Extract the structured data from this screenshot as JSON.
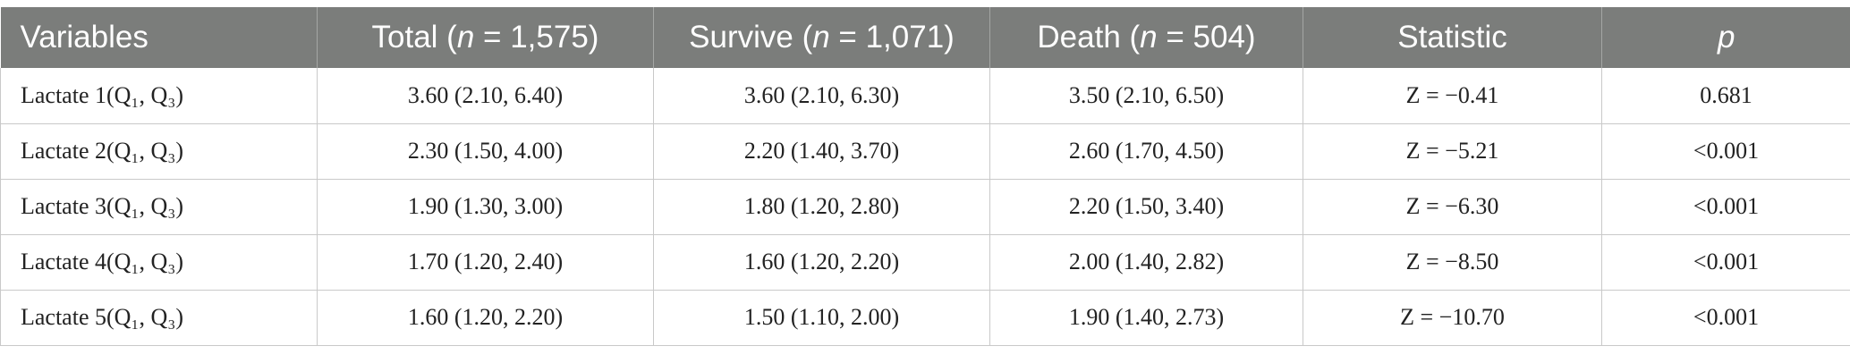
{
  "table": {
    "headers": [
      {
        "pre": "Variables",
        "it": "",
        "post": ""
      },
      {
        "pre": "Total (",
        "it": "n",
        "post": " = 1,575)"
      },
      {
        "pre": "Survive (",
        "it": "n",
        "post": " = 1,071)"
      },
      {
        "pre": "Death (",
        "it": "n",
        "post": " = 504)"
      },
      {
        "pre": "Statistic",
        "it": "",
        "post": ""
      },
      {
        "pre": "",
        "it": "p",
        "post": ""
      }
    ],
    "rows": [
      [
        "Lactate 1(Q₁, Q₃)",
        "3.60 (2.10, 6.40)",
        "3.60 (2.10, 6.30)",
        "3.50 (2.10, 6.50)",
        "Z = −0.41",
        "0.681"
      ],
      [
        "Lactate 2(Q₁, Q₃)",
        "2.30 (1.50, 4.00)",
        "2.20 (1.40, 3.70)",
        "2.60 (1.70, 4.50)",
        "Z = −5.21",
        "<0.001"
      ],
      [
        "Lactate 3(Q₁, Q₃)",
        "1.90 (1.30, 3.00)",
        "1.80 (1.20, 2.80)",
        "2.20 (1.50, 3.40)",
        "Z = −6.30",
        "<0.001"
      ],
      [
        "Lactate 4(Q₁, Q₃)",
        "1.70 (1.20, 2.40)",
        "1.60 (1.20, 2.20)",
        "2.00 (1.40, 2.82)",
        "Z = −8.50",
        "<0.001"
      ],
      [
        "Lactate 5(Q₁, Q₃)",
        "1.60 (1.20, 2.20)",
        "1.50 (1.10, 2.00)",
        "1.90 (1.40, 2.73)",
        "Z = −10.70",
        "<0.001"
      ]
    ]
  }
}
